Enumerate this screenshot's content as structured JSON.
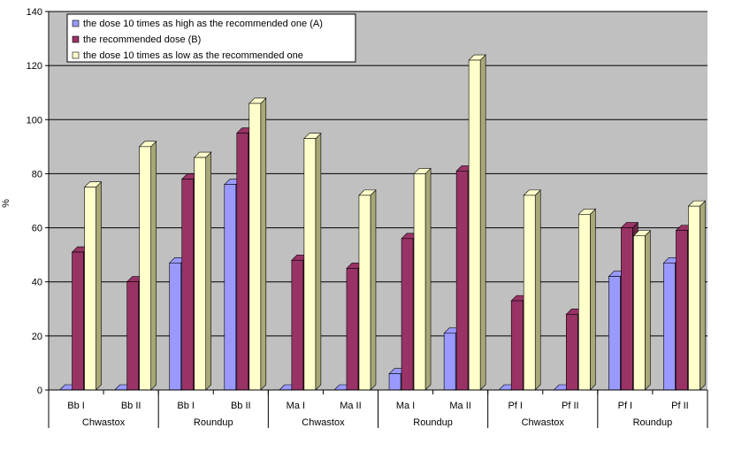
{
  "chart_data": {
    "type": "bar",
    "ylabel": "%",
    "ylim": [
      0,
      140
    ],
    "yticks": [
      0,
      20,
      40,
      60,
      80,
      100,
      120,
      140
    ],
    "grid": true,
    "legend_position": "top-left",
    "categories": [
      "Bb I",
      "Bb II",
      "Bb I",
      "Bb II",
      "Ma I",
      "Ma II",
      "Ma I",
      "Ma II",
      "Pf I",
      "Pf II",
      "Pf I",
      "Pf II"
    ],
    "groups": [
      {
        "label": "Chwastox",
        "span": 2
      },
      {
        "label": "Roundup",
        "span": 2
      },
      {
        "label": "Chwastox",
        "span": 2
      },
      {
        "label": "Roundup",
        "span": 2
      },
      {
        "label": "Chwastox",
        "span": 2
      },
      {
        "label": "Roundup",
        "span": 2
      }
    ],
    "series": [
      {
        "name": "the dose 10 times as high as the recommended one (A)",
        "color": "#9999ff",
        "side": "#6f6fcc",
        "values": [
          0,
          0,
          47,
          76,
          0,
          0,
          6,
          21,
          0,
          0,
          42,
          47
        ]
      },
      {
        "name": "the recommended dose (B)",
        "color": "#993366",
        "side": "#6a2246",
        "values": [
          51,
          40,
          78,
          95,
          48,
          45,
          56,
          81,
          33,
          28,
          60,
          59
        ]
      },
      {
        "name": "the dose 10 times as low as the recommended one",
        "color": "#ffffcc",
        "side": "#a8a878",
        "values": [
          75,
          90,
          86,
          106,
          93,
          72,
          80,
          122,
          72,
          65,
          57,
          68
        ]
      }
    ]
  }
}
